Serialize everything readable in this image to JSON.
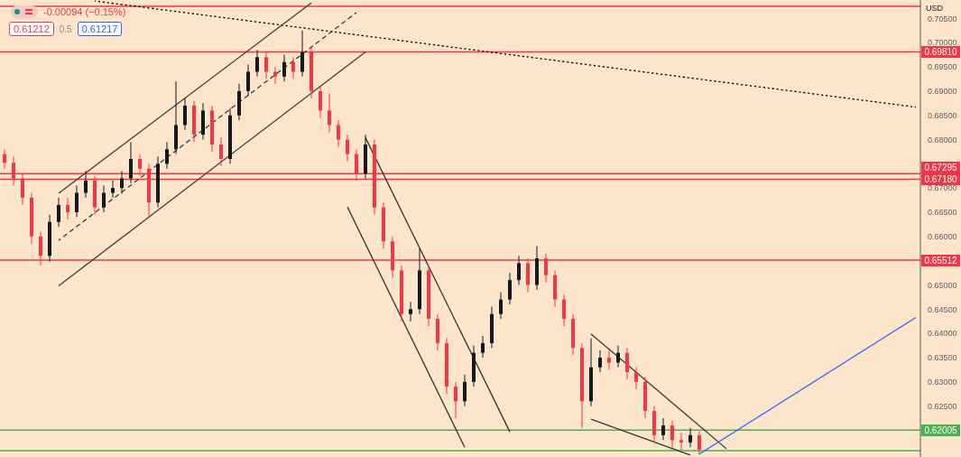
{
  "chart_data": {
    "type": "candlestick",
    "ylabel": "USD",
    "annotations": [
      "-0.00094 (−0.15%)",
      "0.61212",
      "0.5",
      "0.61217"
    ],
    "categories": [
      null,
      null,
      null,
      null,
      null,
      null,
      null,
      null,
      null,
      null,
      null,
      null,
      null,
      null,
      null,
      null,
      null,
      null,
      null,
      null,
      null,
      null,
      null,
      null,
      null,
      null,
      null,
      null,
      null,
      null,
      null,
      null,
      null,
      null,
      null,
      null,
      null,
      null,
      null,
      null,
      null,
      null,
      null,
      null,
      null,
      null,
      null,
      null,
      null,
      null,
      null,
      null,
      null,
      null,
      null,
      null,
      null,
      null,
      null,
      null,
      null,
      null,
      null,
      null,
      null,
      null,
      null,
      null,
      null,
      null,
      null,
      null,
      null,
      null,
      null,
      null,
      null,
      null,
      null,
      null,
      null,
      null,
      null,
      null,
      null,
      null,
      null,
      null,
      null,
      null,
      null,
      null,
      null,
      null,
      null,
      null,
      null,
      null,
      null,
      null,
      null,
      null
    ],
    "ohlc": [
      [
        0.677,
        0.678,
        0.674,
        0.6752
      ],
      [
        0.6752,
        0.6765,
        0.6705,
        0.672
      ],
      [
        0.672,
        0.673,
        0.6665,
        0.668
      ],
      [
        0.668,
        0.669,
        0.6585,
        0.66
      ],
      [
        0.66,
        0.661,
        0.654,
        0.656
      ],
      [
        0.656,
        0.6645,
        0.6548,
        0.663
      ],
      [
        0.663,
        0.668,
        0.662,
        0.6665
      ],
      [
        0.6665,
        0.668,
        0.6635,
        0.665
      ],
      [
        0.665,
        0.6705,
        0.664,
        0.669
      ],
      [
        0.669,
        0.6735,
        0.668,
        0.6715
      ],
      [
        0.6715,
        0.6725,
        0.6645,
        0.666
      ],
      [
        0.666,
        0.6705,
        0.665,
        0.669
      ],
      [
        0.669,
        0.6715,
        0.668,
        0.67
      ],
      [
        0.67,
        0.6735,
        0.6688,
        0.672
      ],
      [
        0.672,
        0.6795,
        0.671,
        0.676
      ],
      [
        0.676,
        0.677,
        0.6725,
        0.674
      ],
      [
        0.674,
        0.675,
        0.664,
        0.667
      ],
      [
        0.667,
        0.6765,
        0.666,
        0.675
      ],
      [
        0.675,
        0.6795,
        0.674,
        0.678
      ],
      [
        0.678,
        0.692,
        0.677,
        0.683
      ],
      [
        0.683,
        0.6885,
        0.682,
        0.687
      ],
      [
        0.687,
        0.688,
        0.6795,
        0.681
      ],
      [
        0.681,
        0.6875,
        0.68,
        0.686
      ],
      [
        0.686,
        0.687,
        0.6775,
        0.679
      ],
      [
        0.679,
        0.6805,
        0.6745,
        0.676
      ],
      [
        0.676,
        0.6865,
        0.675,
        0.685
      ],
      [
        0.685,
        0.6915,
        0.684,
        0.69
      ],
      [
        0.69,
        0.6955,
        0.689,
        0.694
      ],
      [
        0.694,
        0.6985,
        0.693,
        0.697
      ],
      [
        0.697,
        0.698,
        0.6925,
        0.694
      ],
      [
        0.694,
        0.695,
        0.6915,
        0.693
      ],
      [
        0.693,
        0.6975,
        0.692,
        0.696
      ],
      [
        0.696,
        0.697,
        0.6925,
        0.694
      ],
      [
        0.694,
        0.7025,
        0.693,
        0.698
      ],
      [
        0.698,
        0.699,
        0.6885,
        0.69
      ],
      [
        0.69,
        0.691,
        0.6845,
        0.686
      ],
      [
        0.686,
        0.6895,
        0.6815,
        0.683
      ],
      [
        0.683,
        0.684,
        0.6785,
        0.68
      ],
      [
        0.68,
        0.681,
        0.6755,
        0.677
      ],
      [
        0.677,
        0.678,
        0.6715,
        0.673
      ],
      [
        0.673,
        0.681,
        0.672,
        0.679
      ],
      [
        0.679,
        0.68,
        0.6645,
        0.666
      ],
      [
        0.666,
        0.667,
        0.6575,
        0.659
      ],
      [
        0.659,
        0.66,
        0.6515,
        0.653
      ],
      [
        0.653,
        0.654,
        0.6425,
        0.644
      ],
      [
        0.644,
        0.6465,
        0.6425,
        0.645
      ],
      [
        0.645,
        0.6575,
        0.644,
        0.653
      ],
      [
        0.653,
        0.654,
        0.6415,
        0.643
      ],
      [
        0.643,
        0.644,
        0.6365,
        0.638
      ],
      [
        0.638,
        0.639,
        0.6275,
        0.629
      ],
      [
        0.629,
        0.63,
        0.6225,
        0.626
      ],
      [
        0.626,
        0.6315,
        0.625,
        0.63
      ],
      [
        0.63,
        0.6375,
        0.629,
        0.636
      ],
      [
        0.636,
        0.6395,
        0.635,
        0.638
      ],
      [
        0.638,
        0.6455,
        0.637,
        0.644
      ],
      [
        0.644,
        0.6485,
        0.643,
        0.647
      ],
      [
        0.647,
        0.6525,
        0.646,
        0.651
      ],
      [
        0.651,
        0.656,
        0.65,
        0.6545
      ],
      [
        0.6545,
        0.6555,
        0.6485,
        0.65
      ],
      [
        0.65,
        0.658,
        0.649,
        0.6555
      ],
      [
        0.6555,
        0.6565,
        0.6505,
        0.652
      ],
      [
        0.652,
        0.653,
        0.6455,
        0.647
      ],
      [
        0.647,
        0.648,
        0.6415,
        0.643
      ],
      [
        0.643,
        0.644,
        0.6355,
        0.637
      ],
      [
        0.637,
        0.638,
        0.6205,
        0.626
      ],
      [
        0.626,
        0.639,
        0.625,
        0.633
      ],
      [
        0.633,
        0.6365,
        0.632,
        0.635
      ],
      [
        0.635,
        0.6365,
        0.6325,
        0.634
      ],
      [
        0.634,
        0.6375,
        0.633,
        0.636
      ],
      [
        0.636,
        0.637,
        0.6305,
        0.632
      ],
      [
        0.632,
        0.633,
        0.6285,
        0.63
      ],
      [
        0.63,
        0.631,
        0.6225,
        0.624
      ],
      [
        0.624,
        0.625,
        0.6175,
        0.619
      ],
      [
        0.619,
        0.6225,
        0.618,
        0.621
      ],
      [
        0.621,
        0.622,
        0.6165,
        0.618
      ],
      [
        0.618,
        0.6195,
        0.616,
        0.6175
      ],
      [
        0.6175,
        0.6205,
        0.6165,
        0.619
      ],
      [
        0.619,
        0.6198,
        0.615,
        0.616
      ],
      null,
      null,
      null,
      null,
      null,
      null,
      null,
      null,
      null,
      null,
      null,
      null,
      null,
      null,
      null,
      null,
      null,
      null,
      null,
      null,
      null,
      null,
      null,
      null
    ],
    "series": [
      {
        "type": "line",
        "color": "#000000",
        "line_style": "dotted",
        "values": [
          null,
          null,
          null,
          null,
          null,
          null,
          null,
          null,
          null,
          null,
          0.7086,
          null,
          null,
          null,
          null,
          null,
          null,
          null,
          null,
          null,
          null,
          null,
          null,
          null,
          null,
          null,
          null,
          null,
          null,
          null,
          null,
          null,
          null,
          null,
          null,
          null,
          null,
          null,
          null,
          null,
          null,
          null,
          null,
          null,
          null,
          null,
          null,
          null,
          null,
          null,
          null,
          null,
          null,
          null,
          null,
          null,
          null,
          null,
          null,
          null,
          null,
          null,
          null,
          null,
          null,
          null,
          null,
          null,
          null,
          null,
          null,
          null,
          null,
          null,
          null,
          null,
          null,
          null,
          null,
          null,
          null,
          null,
          null,
          null,
          null,
          null,
          null,
          null,
          null,
          null,
          null,
          null,
          null,
          null,
          null,
          null,
          null,
          null,
          null,
          null,
          null,
          0.6867
        ]
      },
      {
        "type": "line",
        "color": "#3a3a3a",
        "line_style": "solid",
        "values": [
          null,
          null,
          null,
          null,
          null,
          null,
          0.6689,
          null,
          null,
          null,
          null,
          null,
          null,
          null,
          null,
          null,
          null,
          null,
          null,
          null,
          null,
          null,
          null,
          null,
          null,
          null,
          null,
          null,
          null,
          null,
          null,
          null,
          null,
          null,
          0.7082,
          null,
          null,
          null,
          null,
          null,
          null,
          null,
          null,
          null,
          null,
          null,
          null,
          null,
          null,
          null,
          null,
          null,
          null,
          null,
          null,
          null,
          null,
          null,
          null,
          null,
          null,
          null,
          null,
          null,
          null,
          null,
          null,
          null,
          null,
          null,
          null,
          null,
          null,
          null,
          null,
          null,
          null,
          null,
          null,
          null,
          null,
          null,
          null,
          null,
          null,
          null,
          null,
          null,
          null,
          null,
          null,
          null,
          null,
          null,
          null,
          null,
          null,
          null,
          null,
          null,
          null,
          null
        ]
      },
      {
        "type": "line",
        "color": "#3a3a3a",
        "line_style": "solid",
        "values": [
          null,
          null,
          null,
          null,
          null,
          null,
          0.6498,
          null,
          null,
          null,
          null,
          null,
          null,
          null,
          null,
          null,
          null,
          null,
          null,
          null,
          null,
          null,
          null,
          null,
          null,
          null,
          null,
          null,
          null,
          null,
          null,
          null,
          null,
          null,
          null,
          null,
          null,
          null,
          null,
          null,
          0.6981,
          null,
          null,
          null,
          null,
          null,
          null,
          null,
          null,
          null,
          null,
          null,
          null,
          null,
          null,
          null,
          null,
          null,
          null,
          null,
          null,
          null,
          null,
          null,
          null,
          null,
          null,
          null,
          null,
          null,
          null,
          null,
          null,
          null,
          null,
          null,
          null,
          null,
          null,
          null,
          null,
          null,
          null,
          null,
          null,
          null,
          null,
          null,
          null,
          null,
          null,
          null,
          null,
          null,
          null,
          null,
          null,
          null,
          null,
          null,
          null,
          null
        ]
      },
      {
        "type": "line",
        "color": "#3a3a3a",
        "line_style": "dashed",
        "values": [
          null,
          null,
          null,
          null,
          null,
          null,
          0.6592,
          null,
          null,
          null,
          null,
          null,
          null,
          null,
          null,
          null,
          null,
          null,
          null,
          null,
          null,
          null,
          null,
          null,
          null,
          null,
          null,
          null,
          null,
          null,
          null,
          null,
          null,
          null,
          null,
          null,
          null,
          null,
          null,
          0.7062,
          null,
          null,
          null,
          null,
          null,
          null,
          null,
          null,
          null,
          null,
          null,
          null,
          null,
          null,
          null,
          null,
          null,
          null,
          null,
          null,
          null,
          null,
          null,
          null,
          null,
          null,
          null,
          null,
          null,
          null,
          null,
          null,
          null,
          null,
          null,
          null,
          null,
          null,
          null,
          null,
          null,
          null,
          null,
          null,
          null,
          null,
          null,
          null,
          null,
          null,
          null,
          null,
          null,
          null,
          null,
          null,
          null,
          null,
          null,
          null,
          null,
          null
        ]
      },
      {
        "type": "line",
        "color": "#333333",
        "line_style": "solid",
        "values": [
          null,
          null,
          null,
          null,
          null,
          null,
          null,
          null,
          null,
          null,
          null,
          null,
          null,
          null,
          null,
          null,
          null,
          null,
          null,
          null,
          null,
          null,
          null,
          null,
          null,
          null,
          null,
          null,
          null,
          null,
          null,
          null,
          null,
          null,
          null,
          null,
          null,
          null,
          null,
          null,
          0.6804,
          null,
          null,
          null,
          null,
          null,
          null,
          null,
          null,
          null,
          null,
          null,
          null,
          null,
          null,
          null,
          0.6197,
          null,
          null,
          null,
          null,
          null,
          null,
          null,
          null,
          null,
          null,
          null,
          null,
          null,
          null,
          null,
          null,
          null,
          null,
          null,
          null,
          null,
          null,
          null,
          null,
          null,
          null,
          null,
          null,
          null,
          null,
          null,
          null,
          null,
          null,
          null,
          null,
          null,
          null,
          null,
          null,
          null,
          null,
          null,
          null,
          null
        ]
      },
      {
        "type": "line",
        "color": "#333333",
        "line_style": "solid",
        "values": [
          null,
          null,
          null,
          null,
          null,
          null,
          null,
          null,
          null,
          null,
          null,
          null,
          null,
          null,
          null,
          null,
          null,
          null,
          null,
          null,
          null,
          null,
          null,
          null,
          null,
          null,
          null,
          null,
          null,
          null,
          null,
          null,
          null,
          null,
          null,
          null,
          null,
          null,
          0.6661,
          null,
          null,
          null,
          null,
          null,
          null,
          null,
          null,
          null,
          null,
          null,
          null,
          0.6165,
          null,
          null,
          null,
          null,
          null,
          null,
          null,
          null,
          null,
          null,
          null,
          null,
          null,
          null,
          null,
          null,
          null,
          null,
          null,
          null,
          null,
          null,
          null,
          null,
          null,
          null,
          null,
          null,
          null,
          null,
          null,
          null,
          null,
          null,
          null,
          null,
          null,
          null,
          null,
          null,
          null,
          null,
          null,
          null,
          null,
          null,
          null,
          null,
          null,
          null
        ]
      },
      {
        "type": "line",
        "color": "#3a3a3a",
        "line_style": "solid",
        "values": [
          null,
          null,
          null,
          null,
          null,
          null,
          null,
          null,
          null,
          null,
          null,
          null,
          null,
          null,
          null,
          null,
          null,
          null,
          null,
          null,
          null,
          null,
          null,
          null,
          null,
          null,
          null,
          null,
          null,
          null,
          null,
          null,
          null,
          null,
          null,
          null,
          null,
          null,
          null,
          null,
          null,
          null,
          null,
          null,
          null,
          null,
          null,
          null,
          null,
          null,
          null,
          null,
          null,
          null,
          null,
          null,
          null,
          null,
          null,
          null,
          null,
          null,
          null,
          null,
          null,
          0.6399,
          null,
          null,
          null,
          null,
          null,
          null,
          null,
          null,
          null,
          null,
          null,
          null,
          null,
          null,
          0.6162,
          null,
          null,
          null,
          null,
          null,
          null,
          null,
          null,
          null,
          null,
          null,
          null,
          null,
          null,
          null,
          null,
          null,
          null,
          null,
          null,
          null
        ]
      },
      {
        "type": "line",
        "color": "#3a3a3a",
        "line_style": "solid",
        "values": [
          null,
          null,
          null,
          null,
          null,
          null,
          null,
          null,
          null,
          null,
          null,
          null,
          null,
          null,
          null,
          null,
          null,
          null,
          null,
          null,
          null,
          null,
          null,
          null,
          null,
          null,
          null,
          null,
          null,
          null,
          null,
          null,
          null,
          null,
          null,
          null,
          null,
          null,
          null,
          null,
          null,
          null,
          null,
          null,
          null,
          null,
          null,
          null,
          null,
          null,
          null,
          null,
          null,
          null,
          null,
          null,
          null,
          null,
          null,
          null,
          null,
          null,
          null,
          null,
          null,
          0.6223,
          null,
          null,
          null,
          null,
          null,
          null,
          null,
          null,
          null,
          null,
          0.6149,
          null,
          null,
          null,
          null,
          null,
          null,
          null,
          null,
          null,
          null,
          null,
          null,
          null,
          null,
          null,
          null,
          null,
          null,
          null,
          null,
          null,
          null,
          null,
          null,
          null
        ]
      },
      {
        "type": "line",
        "color": "#2962ff",
        "line_style": "solid",
        "values": [
          null,
          null,
          null,
          null,
          null,
          null,
          null,
          null,
          null,
          null,
          null,
          null,
          null,
          null,
          null,
          null,
          null,
          null,
          null,
          null,
          null,
          null,
          null,
          null,
          null,
          null,
          null,
          null,
          null,
          null,
          null,
          null,
          null,
          null,
          null,
          null,
          null,
          null,
          null,
          null,
          null,
          null,
          null,
          null,
          null,
          null,
          null,
          null,
          null,
          null,
          null,
          null,
          null,
          null,
          null,
          null,
          null,
          null,
          null,
          null,
          null,
          null,
          null,
          null,
          null,
          null,
          null,
          null,
          null,
          null,
          null,
          null,
          null,
          null,
          null,
          null,
          null,
          0.6151,
          null,
          null,
          null,
          null,
          null,
          null,
          null,
          null,
          null,
          null,
          null,
          null,
          null,
          null,
          null,
          null,
          null,
          null,
          null,
          null,
          null,
          null,
          null,
          0.6433
        ]
      }
    ],
    "ref_lines": [
      {
        "axis": "y",
        "value": 0.7075,
        "label": null,
        "color": "#f23645"
      },
      {
        "axis": "y",
        "value": 0.6981,
        "label": "0.69810",
        "color": "#f23645"
      },
      {
        "axis": "y",
        "value": 0.67295,
        "label": "0.67295",
        "color": "#f23645"
      },
      {
        "axis": "y",
        "value": 0.6718,
        "label": "0.67180",
        "color": "#f23645"
      },
      {
        "axis": "y",
        "value": 0.65512,
        "label": "0.65512",
        "color": "#f23645"
      },
      {
        "axis": "y",
        "value": 0.62005,
        "label": "0.62005",
        "color": "#4caf50"
      },
      {
        "axis": "y",
        "value": 0.6158,
        "label": null,
        "color": "#4caf50"
      }
    ],
    "ylim": [
      0.6145,
      0.7088
    ],
    "yticks": [
      {
        "value": 0.705,
        "label": "0.70500"
      },
      {
        "value": 0.7,
        "label": "0.70000"
      },
      {
        "value": 0.695,
        "label": "0.69500"
      },
      {
        "value": 0.69,
        "label": "0.69000"
      },
      {
        "value": 0.685,
        "label": "0.68500"
      },
      {
        "value": 0.68,
        "label": "0.68000"
      },
      {
        "value": 0.67,
        "label": "0.67000"
      },
      {
        "value": 0.665,
        "label": "0.66500"
      },
      {
        "value": 0.66,
        "label": "0.66000"
      },
      {
        "value": 0.65,
        "label": "0.65000"
      },
      {
        "value": 0.645,
        "label": "0.64500"
      },
      {
        "value": 0.64,
        "label": "0.64000"
      },
      {
        "value": 0.635,
        "label": "0.63500"
      },
      {
        "value": 0.63,
        "label": "0.63000"
      },
      {
        "value": 0.625,
        "label": "0.62500"
      }
    ],
    "tick_labels": "y",
    "grid": false
  }
}
